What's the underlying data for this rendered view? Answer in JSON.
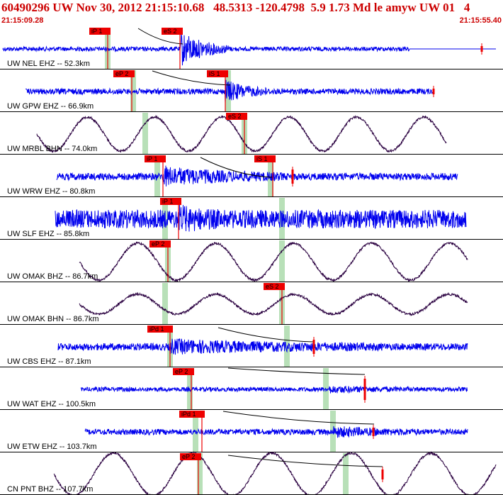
{
  "header": {
    "title": "60490296 UW Nov 30, 2012 21:15:10.68   48.5313 -120.4798  5.9 1.73 Md le amyw UW 01   4",
    "start_time": "21:15:09.28",
    "end_time": "21:15:55.40"
  },
  "colors": {
    "header_text": "#cc0000",
    "trace_blue": "#0000ee",
    "trace_dark": "#2a0040",
    "pick": "#ee0000",
    "pick_window": "#b8e0b8",
    "theory_curve": "#000000"
  },
  "traces": [
    {
      "label": "UW NEL EHZ -- 52.3km",
      "picks": [
        "iP 1",
        "eS 2"
      ]
    },
    {
      "label": "UW GPW EHZ -- 66.9km",
      "picks": [
        "eP 2",
        "iS 1"
      ]
    },
    {
      "label": "UW MRBL BHN -- 74.0km",
      "picks": [
        "eS 2"
      ]
    },
    {
      "label": "UW WRW EHZ -- 80.8km",
      "picks": [
        "iP 1",
        "iS 1"
      ]
    },
    {
      "label": "UW SLF EHZ -- 85.8km",
      "picks": [
        "iP 1"
      ]
    },
    {
      "label": "UW OMAK BHZ -- 86.7km",
      "picks": [
        "eP 2"
      ]
    },
    {
      "label": "UW OMAK BHN -- 86.7km",
      "picks": [
        "eS 2"
      ]
    },
    {
      "label": "UW CBS EHZ -- 87.1km",
      "picks": [
        "iPd 1"
      ]
    },
    {
      "label": "UW WAT EHZ -- 100.5km",
      "picks": [
        "eP 2"
      ]
    },
    {
      "label": "UW ETW EHZ -- 103.7km",
      "picks": [
        "iPd 1"
      ]
    },
    {
      "label": "CN PNT BHZ -- 107.7km",
      "picks": [
        "eP 2"
      ]
    }
  ]
}
